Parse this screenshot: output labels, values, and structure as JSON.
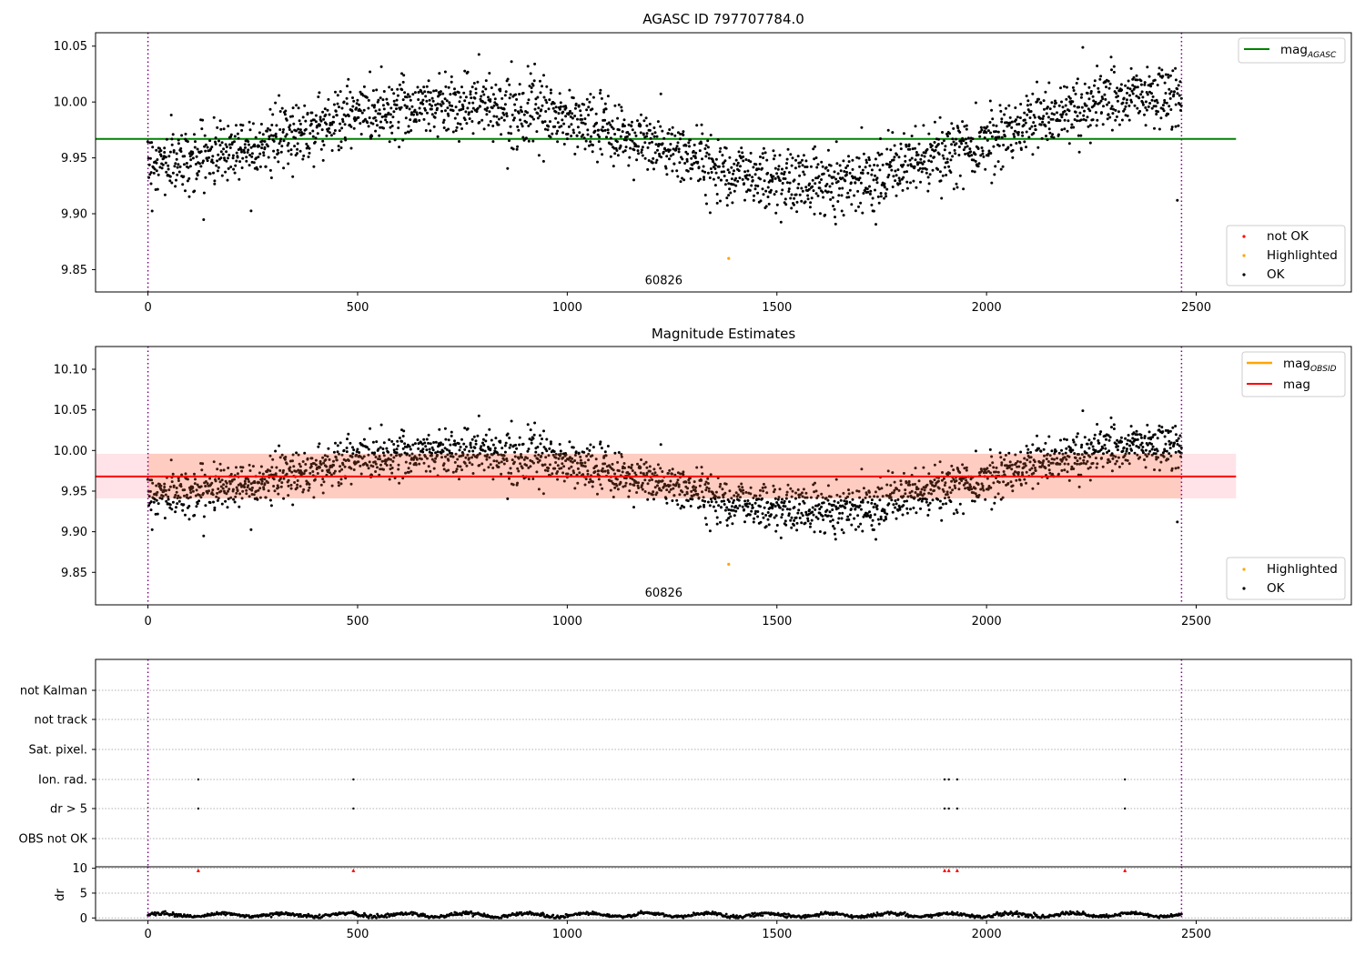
{
  "chart_data": [
    {
      "id": "agasc",
      "type": "scatter",
      "title": "AGASC ID 797707784.0",
      "xlim": [
        -125,
        2870
      ],
      "ylim": [
        9.83,
        10.062
      ],
      "x_ticks": [
        0,
        500,
        1000,
        1500,
        2000,
        2500
      ],
      "y_ticks": [
        9.85,
        9.9,
        9.95,
        10.0,
        10.05
      ],
      "y_tick_labels": [
        "9.85",
        "9.90",
        "9.95",
        "10.00",
        "10.05"
      ],
      "vlines": [
        0,
        2465
      ],
      "hline": {
        "value": 9.967,
        "xmax": 2595,
        "color": "#008000",
        "label_main": "mag",
        "label_sub": "AGASC"
      },
      "annotation": {
        "text": "60826",
        "x": 1230,
        "y": 9.84
      },
      "highlighted_point": {
        "x": 1385,
        "y": 9.86
      },
      "isolated_points": [
        {
          "x": 2455,
          "y": 9.912
        }
      ],
      "legend_points": [
        {
          "label": "not OK",
          "color": "#ff0000"
        },
        {
          "label": "Highlighted",
          "color": "#ffa500"
        },
        {
          "label": "OK",
          "color": "#000000"
        }
      ],
      "x_range": [
        0,
        2465
      ],
      "n_points": 2400,
      "curve_knots": [
        [
          0,
          9.945
        ],
        [
          100,
          9.948
        ],
        [
          200,
          9.958
        ],
        [
          300,
          9.965
        ],
        [
          400,
          9.978
        ],
        [
          500,
          9.99
        ],
        [
          600,
          9.995
        ],
        [
          700,
          9.999
        ],
        [
          800,
          9.998
        ],
        [
          900,
          9.992
        ],
        [
          1000,
          9.985
        ],
        [
          1100,
          9.974
        ],
        [
          1200,
          9.962
        ],
        [
          1300,
          9.95
        ],
        [
          1400,
          9.937
        ],
        [
          1500,
          9.93
        ],
        [
          1600,
          9.928
        ],
        [
          1700,
          9.932
        ],
        [
          1800,
          9.942
        ],
        [
          1900,
          9.952
        ],
        [
          2000,
          9.966
        ],
        [
          2100,
          9.982
        ],
        [
          2200,
          9.994
        ],
        [
          2300,
          10.002
        ],
        [
          2400,
          10.005
        ],
        [
          2465,
          10.003
        ]
      ],
      "scatter_spread": 0.014
    },
    {
      "id": "estimates",
      "type": "scatter",
      "title": "Magnitude Estimates",
      "xlim": [
        -125,
        2870
      ],
      "ylim": [
        9.81,
        10.128
      ],
      "x_ticks": [
        0,
        500,
        1000,
        1500,
        2000,
        2500
      ],
      "y_ticks": [
        9.85,
        9.9,
        9.95,
        10.0,
        10.05,
        10.1
      ],
      "y_tick_labels": [
        "9.85",
        "9.90",
        "9.95",
        "10.00",
        "10.05",
        "10.10"
      ],
      "vlines": [
        0,
        2465
      ],
      "mag_line": {
        "value": 9.968,
        "xmax": 2595,
        "color": "#ff0000",
        "label": "mag"
      },
      "mag_band": {
        "lo": 9.941,
        "hi": 9.996,
        "xmax": 2595,
        "color": "#ffc0cb"
      },
      "obsid_line": {
        "value": 9.968,
        "xmax": 2465,
        "color": "#ffa500",
        "label_main": "mag",
        "label_sub": "OBSID"
      },
      "obsid_band": {
        "lo": 9.941,
        "hi": 9.996,
        "xmax": 2465,
        "color": "#ffa07a"
      },
      "annotation": {
        "text": "60826",
        "x": 1230,
        "y": 9.81
      },
      "highlighted_point": {
        "x": 1385,
        "y": 9.86
      },
      "isolated_points": [
        {
          "x": 2455,
          "y": 9.912
        }
      ],
      "legend_points": [
        {
          "label": "Highlighted",
          "color": "#ffa500"
        },
        {
          "label": "OK",
          "color": "#000000"
        }
      ]
    },
    {
      "id": "flags",
      "type": "scatter",
      "xlim": [
        -125,
        2870
      ],
      "categories": [
        "not Kalman",
        "not track",
        "Sat. pixel.",
        "Ion. rad.",
        "dr > 5",
        "OBS not OK"
      ],
      "vlines": [
        0,
        2465
      ],
      "flag_points": {
        "Ion. rad.": [
          120,
          490,
          1900,
          1910,
          1930,
          2330
        ],
        "dr > 5": [
          120,
          490,
          1900,
          1910,
          1930,
          2330
        ]
      }
    },
    {
      "id": "dr",
      "type": "scatter",
      "xlim": [
        -125,
        2870
      ],
      "ylim": [
        -0.5,
        10.3
      ],
      "ylabel": "dr",
      "x_ticks": [
        0,
        500,
        1000,
        1500,
        2000,
        2500
      ],
      "y_ticks": [
        0,
        5,
        10
      ],
      "y_tick_labels": [
        "0",
        "5",
        "10"
      ],
      "vlines": [
        0,
        2465
      ],
      "red_markers": {
        "x": [
          120,
          490,
          1900,
          1910,
          1930,
          2330
        ],
        "y": 9.6
      },
      "dr_typical": 0.6
    }
  ]
}
